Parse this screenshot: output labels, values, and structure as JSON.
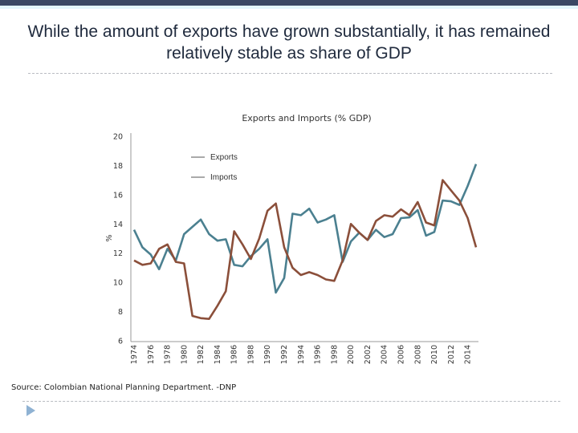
{
  "slide": {
    "title": "While the amount of exports have grown substantially, it has remained relatively stable as share of GDP",
    "source": "Source: Colombian National Planning Department. -DNP"
  },
  "colors": {
    "topbar": "#3b4863",
    "exports": "#8b4f3a",
    "imports": "#4b8090",
    "legend_line": "#555555"
  },
  "chart_data": {
    "type": "line",
    "title": "Exports and Imports (% GDP)",
    "xlabel": "",
    "ylabel": "%",
    "ylim": [
      6,
      20
    ],
    "yticks": [
      "20",
      "18",
      "16",
      "14",
      "12",
      "10",
      "8",
      "6"
    ],
    "xtick_labels": [
      "1974",
      "1976",
      "1978",
      "1980",
      "1982",
      "1984",
      "1986",
      "1988",
      "1990",
      "1992",
      "1994",
      "1996",
      "1998",
      "2000",
      "2002",
      "2004",
      "2006",
      "2008",
      "2010",
      "2012",
      "2014"
    ],
    "x": [
      1974,
      1975,
      1976,
      1977,
      1978,
      1979,
      1980,
      1981,
      1982,
      1983,
      1984,
      1985,
      1986,
      1987,
      1988,
      1989,
      1990,
      1991,
      1992,
      1993,
      1994,
      1995,
      1996,
      1997,
      1998,
      1999,
      2000,
      2001,
      2002,
      2003,
      2004,
      2005,
      2006,
      2007,
      2008,
      2009,
      2010,
      2011,
      2012,
      2013,
      2014,
      2015
    ],
    "grid": false,
    "legend_position": "top-left",
    "series": [
      {
        "name": "Exports",
        "values": [
          11.5,
          11.2,
          11.3,
          12.3,
          12.6,
          11.4,
          11.3,
          7.7,
          7.55,
          7.5,
          8.4,
          9.4,
          13.5,
          12.6,
          11.6,
          13.0,
          14.9,
          15.4,
          12.4,
          11.0,
          10.5,
          10.7,
          10.5,
          10.2,
          10.1,
          11.5,
          14.0,
          13.4,
          12.9,
          14.2,
          14.6,
          14.5,
          15.0,
          14.6,
          15.5,
          14.1,
          13.9,
          17.0,
          16.3,
          15.6,
          14.4,
          12.4
        ]
      },
      {
        "name": "Imports",
        "values": [
          13.6,
          12.4,
          11.9,
          10.9,
          12.3,
          11.5,
          13.3,
          13.8,
          14.3,
          13.3,
          12.85,
          12.95,
          11.2,
          11.1,
          11.8,
          12.3,
          12.95,
          9.3,
          10.3,
          14.7,
          14.6,
          15.05,
          14.1,
          14.3,
          14.6,
          11.4,
          12.8,
          13.4,
          12.9,
          13.6,
          13.1,
          13.3,
          14.4,
          14.45,
          14.95,
          13.2,
          13.45,
          15.6,
          15.55,
          15.3,
          16.6,
          18.1
        ]
      }
    ]
  }
}
